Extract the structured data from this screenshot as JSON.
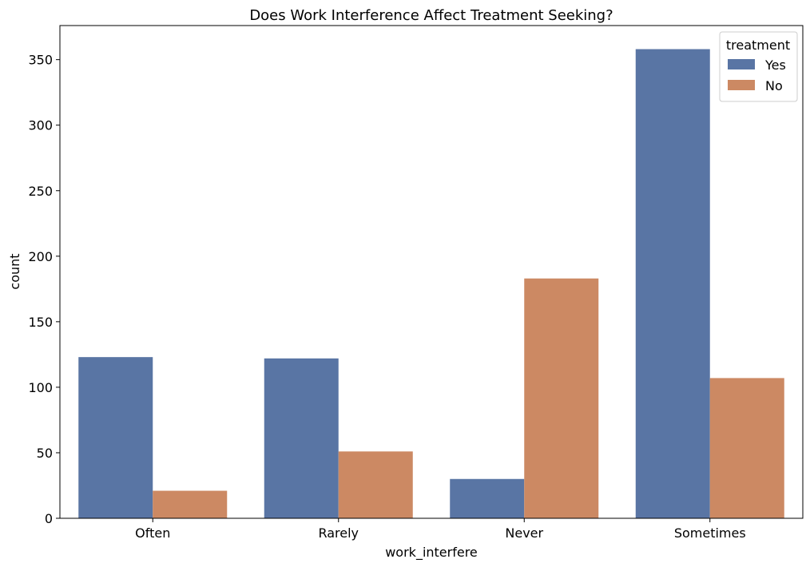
{
  "chart_data": {
    "type": "bar",
    "title": "Does Work Interference Affect Treatment Seeking?",
    "xlabel": "work_interfere",
    "ylabel": "count",
    "categories": [
      "Often",
      "Rarely",
      "Never",
      "Sometimes"
    ],
    "series": [
      {
        "name": "Yes",
        "color": "#5975a4",
        "values": [
          123,
          122,
          30,
          358
        ]
      },
      {
        "name": "No",
        "color": "#cc8963",
        "values": [
          21,
          51,
          183,
          107
        ]
      }
    ],
    "ylim": [
      0,
      376
    ],
    "yticks": [
      0,
      50,
      100,
      150,
      200,
      250,
      300,
      350
    ],
    "grid": false,
    "legend": {
      "title": "treatment",
      "position": "top-right"
    }
  }
}
